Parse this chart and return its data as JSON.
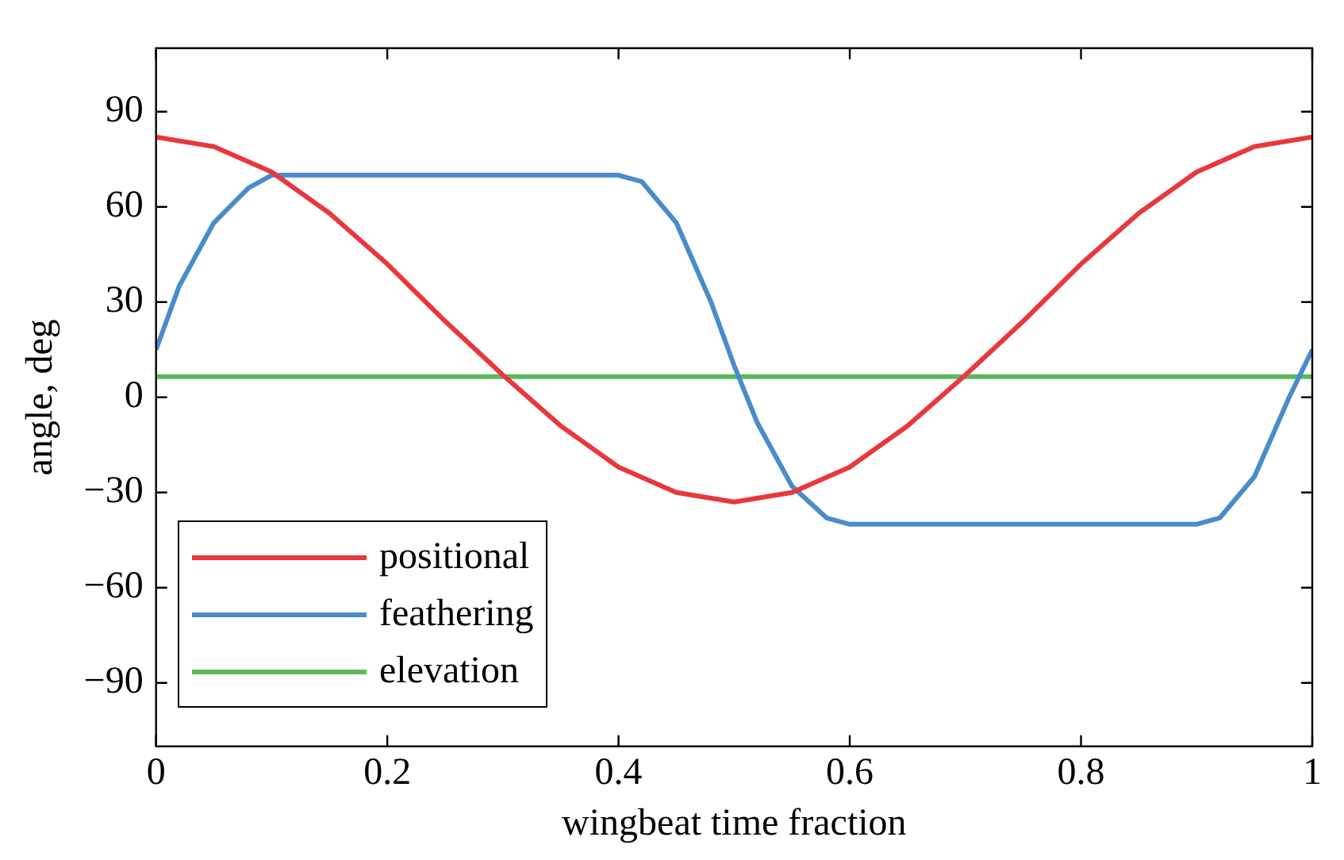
{
  "chart_data": {
    "type": "line",
    "xlabel": "wingbeat time fraction",
    "ylabel": "angle, deg",
    "xlim": [
      0,
      1
    ],
    "ylim": [
      -110,
      110
    ],
    "xticks": [
      0,
      0.2,
      0.4,
      0.6,
      0.8,
      1
    ],
    "yticks": [
      {
        "value": -90,
        "label": "−90"
      },
      {
        "value": -60,
        "label": "−60"
      },
      {
        "value": -30,
        "label": "−30"
      },
      0,
      30,
      60,
      90
    ],
    "grid": false,
    "legend": "bottom left",
    "line_style": "solid",
    "marker": "none",
    "series": [
      {
        "name": "positional",
        "color": "#e8383d",
        "x": [
          0,
          0.05,
          0.1,
          0.15,
          0.2,
          0.25,
          0.3,
          0.35,
          0.4,
          0.45,
          0.5,
          0.55,
          0.6,
          0.65,
          0.7,
          0.75,
          0.8,
          0.85,
          0.9,
          0.95,
          1
        ],
        "values": [
          82,
          79,
          71,
          58,
          42,
          24,
          7,
          -9,
          -22,
          -30,
          -33,
          -30,
          -22,
          -9,
          7,
          24,
          42,
          58,
          71,
          79,
          82
        ]
      },
      {
        "name": "feathering",
        "color": "#4a8ccb",
        "x": [
          0,
          0.02,
          0.05,
          0.08,
          0.1,
          0.2,
          0.3,
          0.4,
          0.42,
          0.45,
          0.48,
          0.5,
          0.52,
          0.55,
          0.58,
          0.6,
          0.7,
          0.8,
          0.9,
          0.92,
          0.95,
          0.98,
          1
        ],
        "values": [
          15,
          35,
          55,
          66,
          70,
          70,
          70,
          70,
          68,
          55,
          30,
          10,
          -8,
          -28,
          -38,
          -40,
          -40,
          -40,
          -40,
          -38,
          -25,
          0,
          15
        ]
      },
      {
        "name": "elevation",
        "color": "#5cb85c",
        "x": [
          0,
          1
        ],
        "values": [
          6.5,
          6.5
        ]
      }
    ]
  }
}
